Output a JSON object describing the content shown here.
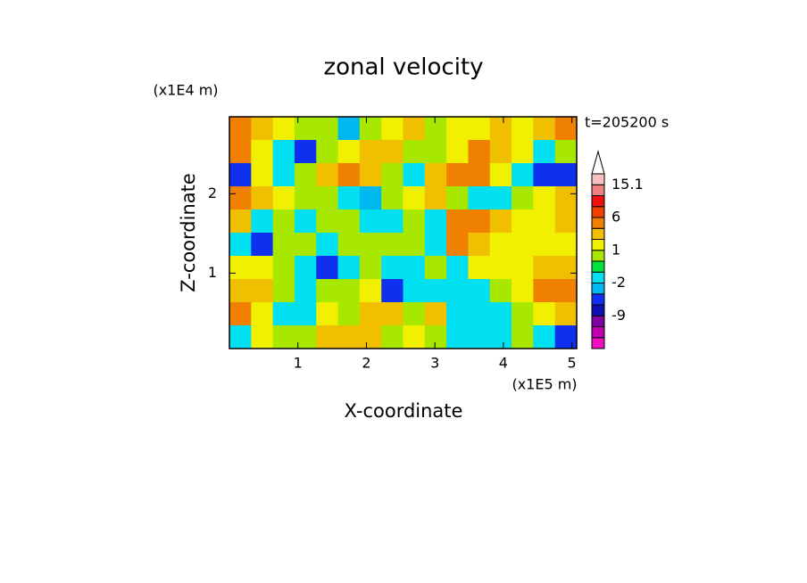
{
  "chart_data": {
    "type": "contour",
    "title": "zonal velocity",
    "x_label": "X-coordinate",
    "y_label": "Z-coordinate",
    "x_unit": "(x1E5 m)",
    "y_unit": "(x1E4 m)",
    "annotation": "t=205200 s",
    "xlim": [
      0,
      5.07
    ],
    "ylim": [
      0.05,
      2.97
    ],
    "xticks": [
      1,
      2,
      3,
      4,
      5
    ],
    "yticks": [
      1,
      2
    ],
    "levels": [
      -15,
      -12,
      -9,
      -6,
      -3,
      -2,
      -1,
      0,
      1,
      2,
      3,
      6,
      9,
      12,
      15.1
    ],
    "colorbar_labels": [
      -9,
      -2,
      1,
      6,
      15.1
    ],
    "colors": [
      "#f010c0",
      "#c000b0",
      "#8000a0",
      "#1010b0",
      "#1030f0",
      "#00b8f0",
      "#00e0f0",
      "#00e040",
      "#a8e800",
      "#f0f000",
      "#f0c000",
      "#f08000",
      "#f04000",
      "#f01010",
      "#f08080",
      "#f8c0c0",
      "#ffffff"
    ],
    "z": [
      [
        5,
        2,
        1.5,
        0.5,
        0.5,
        -3,
        0.5,
        1.5,
        2,
        0.5,
        1.5,
        1.5,
        2,
        1.5,
        2.5,
        5
      ],
      [
        4,
        1.5,
        -1.5,
        -4,
        0.5,
        1.5,
        2.5,
        2,
        0.5,
        0.5,
        1.5,
        3,
        2,
        1.5,
        -1.5,
        0.5
      ],
      [
        -4,
        1.5,
        -1.5,
        0.5,
        2.5,
        3,
        2,
        0.5,
        -1.5,
        2.5,
        3,
        3,
        1.5,
        -1.5,
        -4,
        -6
      ],
      [
        4,
        2,
        1.5,
        0.5,
        0.5,
        -1.5,
        -3,
        0.5,
        1.5,
        2,
        0.5,
        -1.5,
        -1.5,
        0.5,
        1.5,
        2
      ],
      [
        2,
        -1.5,
        0.5,
        -1.5,
        0.5,
        0.5,
        -1.5,
        -1.5,
        0.5,
        -1.5,
        4,
        4,
        2,
        1.5,
        1.5,
        2
      ],
      [
        -1.5,
        -4,
        0.5,
        0.5,
        -1.5,
        0.5,
        0.5,
        0.5,
        0.5,
        -1.5,
        3,
        2,
        1.5,
        1.5,
        1.5,
        1.5
      ],
      [
        1.5,
        1.5,
        0.5,
        -1.5,
        -4,
        -1.5,
        0.5,
        -1.5,
        -1.5,
        0.5,
        -1.5,
        1.5,
        1.5,
        1.5,
        2,
        2
      ],
      [
        2,
        2,
        0.5,
        -1.5,
        0.5,
        0.5,
        1.5,
        -4,
        -1.5,
        -1.5,
        -1.5,
        -1.5,
        0.5,
        1.5,
        3,
        4
      ],
      [
        4,
        1.5,
        -1.5,
        -1.5,
        1.5,
        0.5,
        2,
        2,
        0.5,
        2,
        -1.5,
        -1.5,
        -1.5,
        0.5,
        1.5,
        2
      ],
      [
        -1.5,
        1.5,
        0.5,
        0.5,
        2,
        2,
        2,
        0.5,
        1.5,
        0.5,
        -1.5,
        -1.5,
        -1.5,
        0.5,
        -1.5,
        -4
      ]
    ]
  }
}
